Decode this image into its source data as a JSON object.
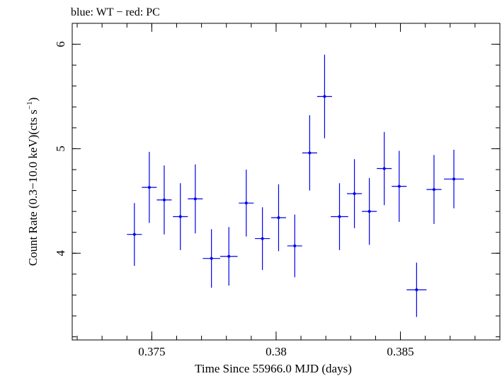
{
  "chart_data": {
    "type": "scatter",
    "title": "blue: WT − red: PC",
    "xlabel": "Time Since 55966.0 MJD (days)",
    "ylabel_main": "Count Rate (0.3−10.0 keV)(cts s",
    "ylabel_sup": "−1",
    "ylabel_tail": ")",
    "xlim": [
      0.3718,
      0.389
    ],
    "ylim": [
      3.17,
      6.2
    ],
    "x_ticks": [
      {
        "value": 0.375,
        "label": "0.375"
      },
      {
        "value": 0.38,
        "label": "0.38"
      },
      {
        "value": 0.385,
        "label": "0.385"
      }
    ],
    "y_ticks": [
      {
        "value": 4,
        "label": "4"
      },
      {
        "value": 5,
        "label": "5"
      },
      {
        "value": 6,
        "label": "6"
      }
    ],
    "x_minor_step": 0.001,
    "y_minor_step": 0.2,
    "colors": {
      "wt": "#0000ee",
      "pc": "#ee0000",
      "axes": "#000000"
    },
    "series": [
      {
        "name": "WT",
        "color": "#0000ee",
        "points": [
          {
            "x": 0.3743,
            "y": 4.18,
            "xerr": 0.0003,
            "yerr": 0.3
          },
          {
            "x": 0.3749,
            "y": 4.63,
            "xerr": 0.0003,
            "yerr": 0.34
          },
          {
            "x": 0.3755,
            "y": 4.51,
            "xerr": 0.0003,
            "yerr": 0.33
          },
          {
            "x": 0.37615,
            "y": 4.35,
            "xerr": 0.0003,
            "yerr": 0.32
          },
          {
            "x": 0.37675,
            "y": 4.52,
            "xerr": 0.0003,
            "yerr": 0.33
          },
          {
            "x": 0.3774,
            "y": 3.95,
            "xerr": 0.00035,
            "yerr": 0.28
          },
          {
            "x": 0.3781,
            "y": 3.97,
            "xerr": 0.00035,
            "yerr": 0.28
          },
          {
            "x": 0.3788,
            "y": 4.48,
            "xerr": 0.0003,
            "yerr": 0.32
          },
          {
            "x": 0.37945,
            "y": 4.14,
            "xerr": 0.0003,
            "yerr": 0.3
          },
          {
            "x": 0.3801,
            "y": 4.34,
            "xerr": 0.0003,
            "yerr": 0.32
          },
          {
            "x": 0.38075,
            "y": 4.07,
            "xerr": 0.0003,
            "yerr": 0.3
          },
          {
            "x": 0.38135,
            "y": 4.96,
            "xerr": 0.0003,
            "yerr": 0.36
          },
          {
            "x": 0.38195,
            "y": 5.5,
            "xerr": 0.0003,
            "yerr": 0.4
          },
          {
            "x": 0.38255,
            "y": 4.35,
            "xerr": 0.00035,
            "yerr": 0.32
          },
          {
            "x": 0.38315,
            "y": 4.57,
            "xerr": 0.0003,
            "yerr": 0.33
          },
          {
            "x": 0.38375,
            "y": 4.4,
            "xerr": 0.0003,
            "yerr": 0.32
          },
          {
            "x": 0.38435,
            "y": 4.81,
            "xerr": 0.0003,
            "yerr": 0.35
          },
          {
            "x": 0.38495,
            "y": 4.64,
            "xerr": 0.0003,
            "yerr": 0.34
          },
          {
            "x": 0.38565,
            "y": 3.65,
            "xerr": 0.0004,
            "yerr": 0.26
          },
          {
            "x": 0.38635,
            "y": 4.61,
            "xerr": 0.0003,
            "yerr": 0.33
          },
          {
            "x": 0.38715,
            "y": 4.71,
            "xerr": 0.0004,
            "yerr": 0.28
          }
        ]
      }
    ]
  }
}
